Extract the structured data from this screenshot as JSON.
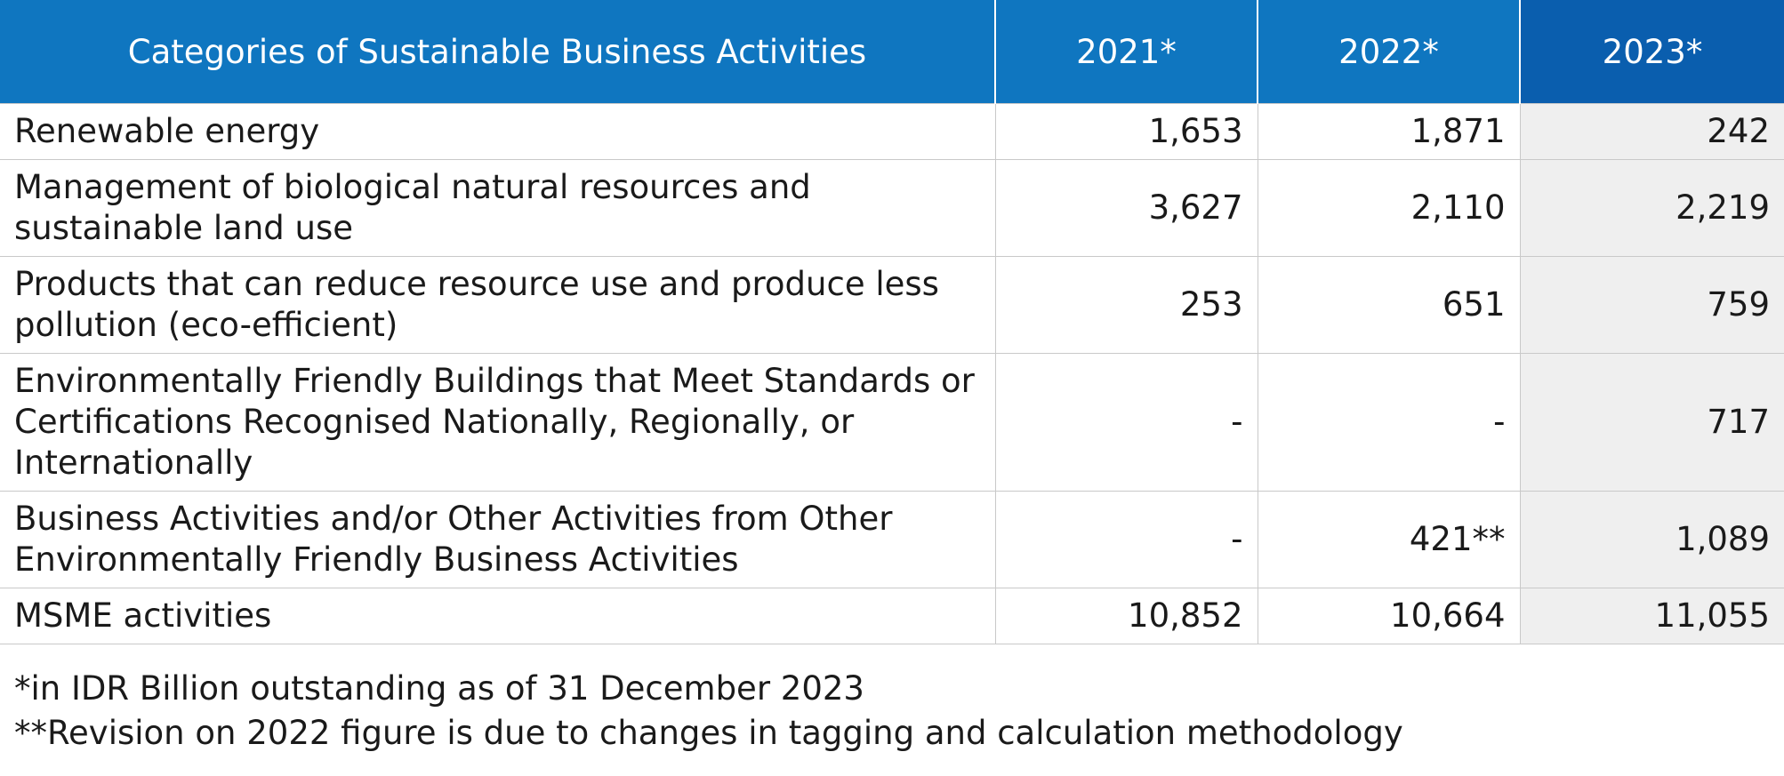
{
  "table": {
    "headers": {
      "category": "Categories of Sustainable Business Activities",
      "y2021": "2021*",
      "y2022": "2022*",
      "y2023": "2023*"
    },
    "rows": [
      {
        "category": "Renewable energy",
        "y2021": "1,653",
        "y2022": "1,871",
        "y2023": "242"
      },
      {
        "category": "Management of biological natural resources and sustainable land use",
        "y2021": "3,627",
        "y2022": "2,110",
        "y2023": "2,219"
      },
      {
        "category": "Products that can reduce resource use and produce less pollution (eco-efficient)",
        "y2021": "253",
        "y2022": "651",
        "y2023": "759"
      },
      {
        "category": "Environmentally Friendly Buildings that Meet Standards or Certifications Recognised Nationally, Regionally, or Internationally",
        "y2021": "-",
        "y2022": "-",
        "y2023": "717"
      },
      {
        "category": "Business Activities and/or Other Activities from Other Environmentally Friendly Business Activities",
        "y2021": "-",
        "y2022": "421**",
        "y2023": "1,089"
      },
      {
        "category": "MSME activities",
        "y2021": "10,852",
        "y2022": "10,664",
        "y2023": "11,055"
      }
    ]
  },
  "notes": {
    "note1": "*in IDR Billion outstanding as of 31 December 2023",
    "note2": "**Revision on 2022 figure is due to changes in tagging and calculation methodology"
  },
  "colors": {
    "header_blue": "#0f76c0",
    "header_dark_blue": "#0a5eae",
    "highlight_column": "#efefef"
  }
}
